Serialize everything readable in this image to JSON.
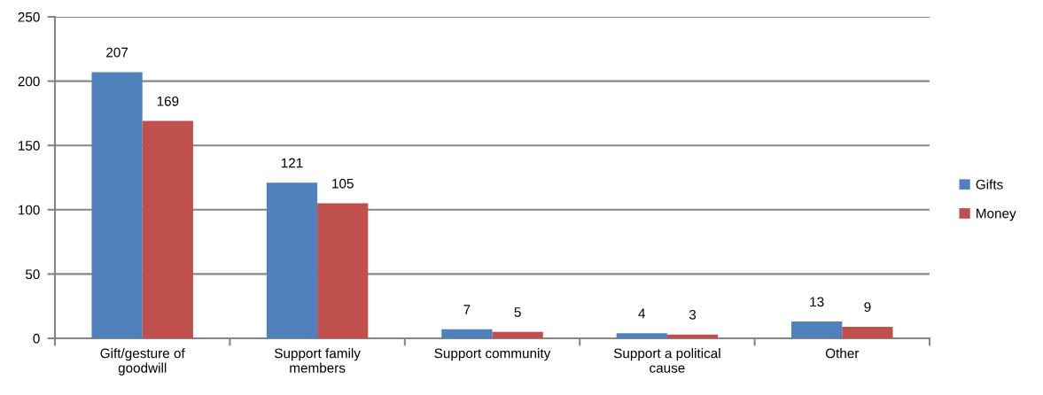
{
  "chart_data": {
    "type": "bar",
    "categories": [
      "Gift/gesture of\ngoodwill",
      "Support family\nmembers",
      "Support community",
      "Support a political\ncause",
      "Other"
    ],
    "series": [
      {
        "name": "Gifts",
        "color": "#4f81bd",
        "values": [
          207,
          121,
          7,
          4,
          13
        ]
      },
      {
        "name": "Money",
        "color": "#c0504d",
        "values": [
          169,
          105,
          5,
          3,
          9
        ]
      }
    ],
    "ylim": [
      0,
      250
    ],
    "yticks": [
      0,
      50,
      100,
      150,
      200,
      250
    ],
    "grid": "y",
    "legend": "right",
    "data_labels": true
  }
}
